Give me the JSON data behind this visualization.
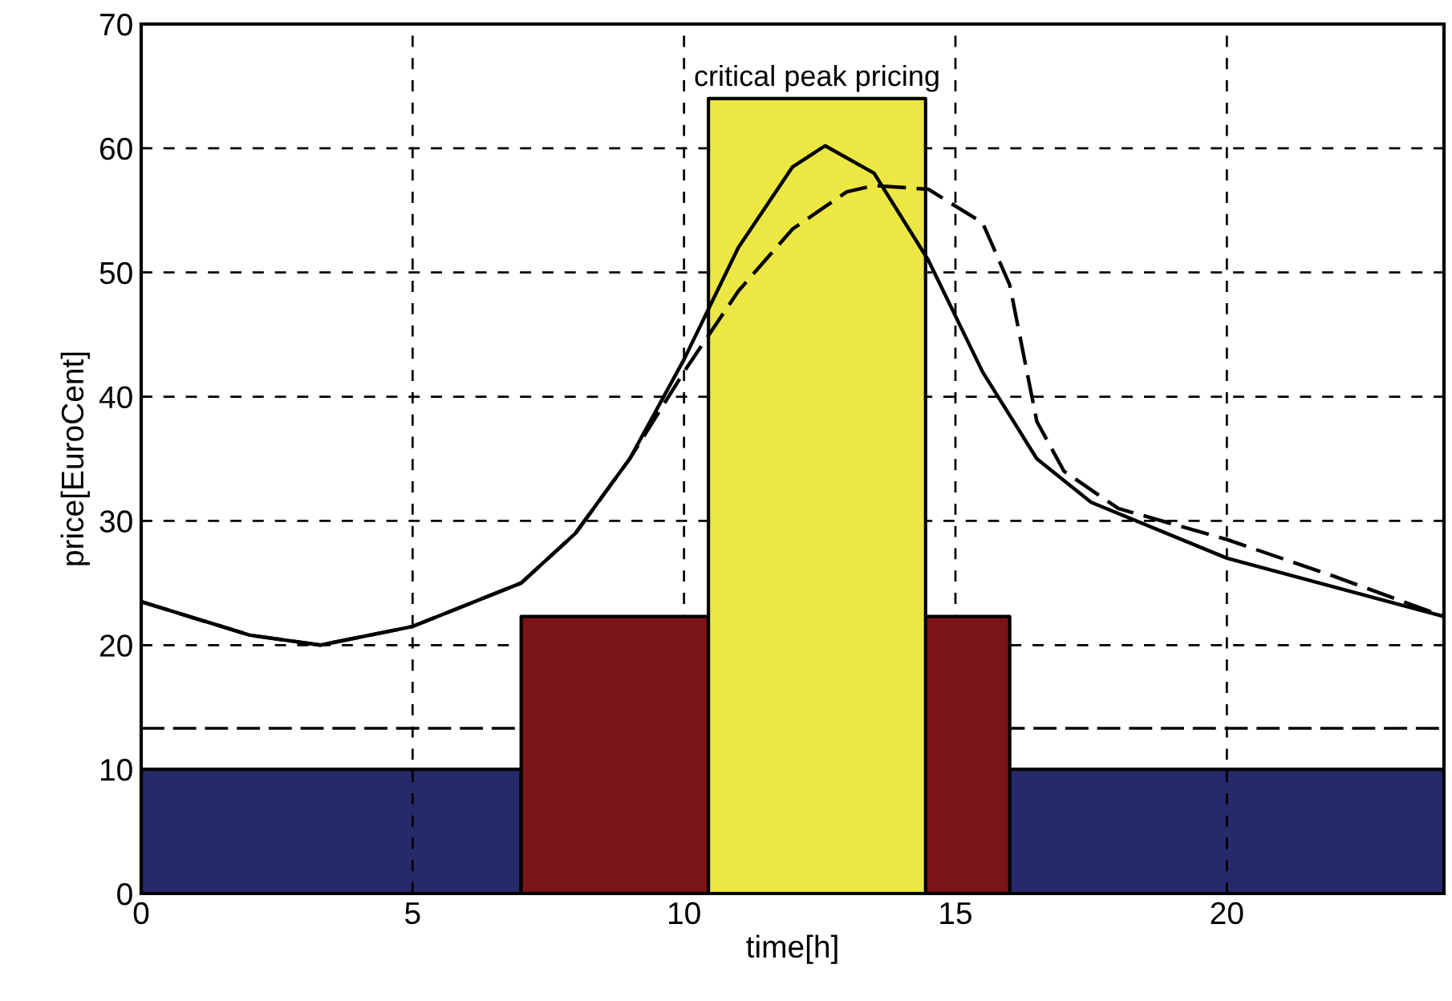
{
  "chart_data": {
    "type": "area",
    "xlabel": "time[h]",
    "ylabel": "price[EuroCent]",
    "xlim": [
      0,
      24
    ],
    "ylim": [
      0,
      70
    ],
    "xticks": [
      0,
      5,
      10,
      15,
      20
    ],
    "yticks": [
      0,
      10,
      20,
      30,
      40,
      50,
      60,
      70
    ],
    "grid": true,
    "series": [
      {
        "color": "#262a6b",
        "x": [
          0,
          7,
          16,
          24
        ],
        "values": [
          10,
          0,
          10,
          10
        ]
      },
      {
        "color": "#7a1416",
        "x": [
          7,
          16
        ],
        "values": [
          22.3,
          22.3
        ]
      },
      {
        "color": "#ede744",
        "x": [
          10.45,
          14.45
        ],
        "values": [
          64,
          64
        ]
      },
      {
        "type": "line",
        "color": "#000000",
        "line_style": "solid",
        "x": [
          0,
          2,
          3.3,
          5,
          7,
          8,
          9,
          10,
          11,
          12,
          12.6,
          13.5,
          14.5,
          15.5,
          16.5,
          17.5,
          20,
          24
        ],
        "values": [
          23.5,
          20.8,
          20,
          21.5,
          25,
          29,
          35,
          43,
          52,
          58.5,
          60.2,
          58,
          51,
          42,
          35,
          31.5,
          27,
          22.3
        ]
      },
      {
        "type": "line",
        "color": "#000000",
        "line_style": "dashed",
        "x": [
          0,
          2,
          3.3,
          5,
          7,
          8,
          9,
          10,
          11,
          12,
          13,
          13.5,
          14.5,
          15.5,
          16,
          16.5,
          17,
          18,
          20,
          22,
          24
        ],
        "values": [
          23.5,
          20.8,
          20,
          21.5,
          25,
          29,
          35,
          42,
          48.5,
          53.5,
          56.5,
          57,
          56.7,
          54,
          49,
          38,
          34,
          31,
          28.5,
          25.5,
          22.3
        ]
      }
    ],
    "ref_lines": [
      {
        "axis": "y",
        "value": 13.3,
        "color": "#000000",
        "line_style": "dashed"
      }
    ],
    "annotations": [
      {
        "text": "critical peak pricing",
        "x": 12.45,
        "y": 64
      }
    ]
  }
}
